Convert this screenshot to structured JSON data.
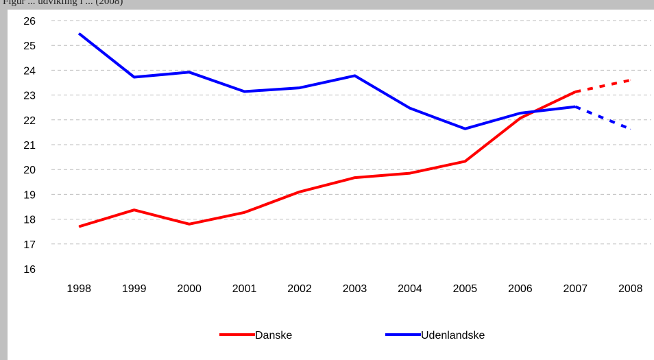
{
  "caption": "Figur ... udvikling i ... (2008)",
  "chart_data": {
    "type": "line",
    "title": "",
    "xlabel": "",
    "ylabel": "",
    "x": [
      "1998",
      "1999",
      "2000",
      "2001",
      "2002",
      "2003",
      "2004",
      "2005",
      "2006",
      "2007",
      "2008"
    ],
    "ylim": [
      16,
      26
    ],
    "yticks": [
      16,
      17,
      18,
      19,
      20,
      21,
      22,
      23,
      24,
      25,
      26
    ],
    "grid": true,
    "legend_position": "bottom",
    "series": [
      {
        "name": "Danske",
        "color": "#ff0000",
        "values": [
          17.7,
          18.37,
          17.8,
          18.27,
          19.1,
          19.67,
          19.85,
          20.33,
          22.07,
          23.13,
          23.6
        ],
        "projected_from_index": 9
      },
      {
        "name": "Udenlandske",
        "color": "#0000ff",
        "values": [
          25.48,
          23.72,
          23.92,
          23.14,
          23.29,
          23.78,
          22.47,
          21.64,
          22.27,
          22.53,
          21.63
        ],
        "projected_from_index": 9
      }
    ]
  }
}
